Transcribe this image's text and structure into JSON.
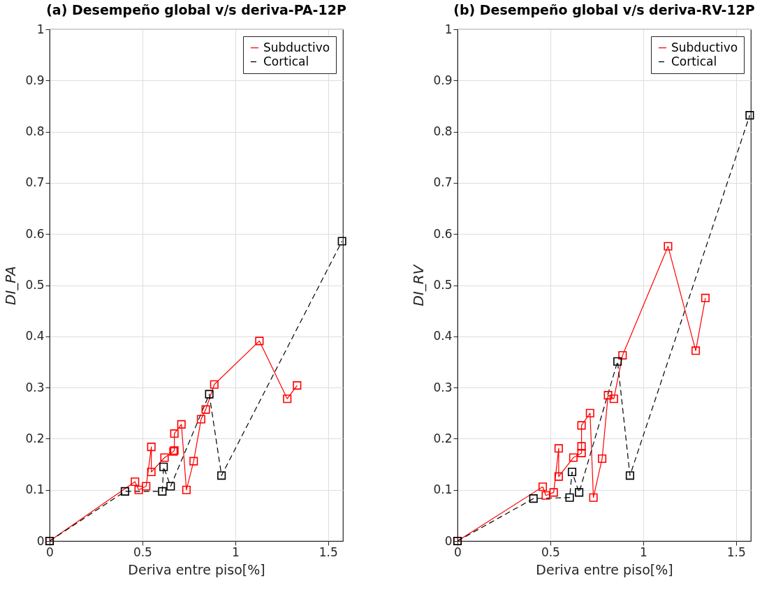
{
  "chart_data": [
    {
      "type": "line",
      "title": "(a) Desempeño global v/s deriva-PA-12P",
      "xlabel": "Deriva entre piso[%]",
      "ylabel": "DI_PA",
      "xlim": [
        0,
        1.58
      ],
      "xticks": [
        0,
        0.5,
        1,
        1.5
      ],
      "ylim": [
        0,
        1
      ],
      "yticks": [
        0,
        0.1,
        0.2,
        0.3,
        0.4,
        0.5,
        0.6,
        0.7,
        0.8,
        0.9,
        1
      ],
      "grid": true,
      "legend": "top right",
      "marker": "square",
      "series": [
        {
          "name": "Subductivo",
          "color": "#ff0000",
          "line_style": "solid",
          "x": [
            0,
            0.46,
            0.48,
            0.52,
            0.548,
            0.548,
            0.619,
            0.667,
            0.672,
            0.672,
            0.71,
            0.737,
            0.776,
            0.816,
            0.841,
            0.887,
            1.13,
            1.28,
            1.333
          ],
          "values": [
            0,
            0.116,
            0.1,
            0.107,
            0.184,
            0.135,
            0.163,
            0.175,
            0.177,
            0.21,
            0.228,
            0.1,
            0.156,
            0.238,
            0.257,
            0.306,
            0.391,
            0.278,
            0.304
          ]
        },
        {
          "name": "Cortical",
          "color": "#000000",
          "line_style": "dashed",
          "x": [
            0,
            0.406,
            0.607,
            0.614,
            0.652,
            0.86,
            0.926,
            1.575
          ],
          "values": [
            0,
            0.097,
            0.097,
            0.145,
            0.107,
            0.287,
            0.128,
            0.586
          ]
        }
      ]
    },
    {
      "type": "line",
      "title": "(b) Desempeño global v/s deriva-RV-12P",
      "xlabel": "Deriva entre piso[%]",
      "ylabel": "DI_RV",
      "xlim": [
        0,
        1.58
      ],
      "xticks": [
        0,
        0.5,
        1,
        1.5
      ],
      "ylim": [
        0,
        1
      ],
      "yticks": [
        0,
        0.1,
        0.2,
        0.3,
        0.4,
        0.5,
        0.6,
        0.7,
        0.8,
        0.9,
        1
      ],
      "grid": true,
      "legend": "top right",
      "marker": "square",
      "series": [
        {
          "name": "Subductivo",
          "color": "#ff0000",
          "line_style": "solid",
          "x": [
            0,
            0.459,
            0.476,
            0.518,
            0.545,
            0.545,
            0.624,
            0.668,
            0.668,
            0.668,
            0.714,
            0.732,
            0.779,
            0.811,
            0.842,
            0.889,
            1.134,
            1.283,
            1.335
          ],
          "values": [
            0,
            0.106,
            0.089,
            0.095,
            0.181,
            0.126,
            0.163,
            0.172,
            0.185,
            0.226,
            0.25,
            0.085,
            0.161,
            0.285,
            0.278,
            0.363,
            0.576,
            0.372,
            0.475
          ]
        },
        {
          "name": "Cortical",
          "color": "#000000",
          "line_style": "dashed",
          "x": [
            0,
            0.409,
            0.604,
            0.617,
            0.655,
            0.862,
            0.929,
            1.574
          ],
          "values": [
            0,
            0.083,
            0.085,
            0.135,
            0.095,
            0.351,
            0.128,
            0.832
          ]
        }
      ]
    }
  ]
}
